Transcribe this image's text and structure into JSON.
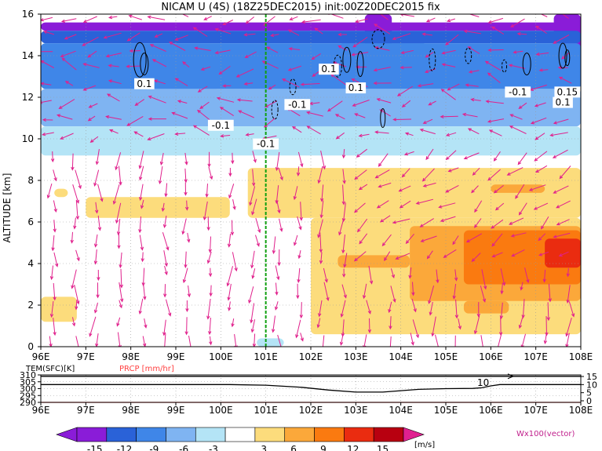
{
  "title": "NICAM U (4S) (18Z25DEC2015) init:00Z20DEC2015 fix",
  "colors": {
    "neg15": "#8a1cd8",
    "neg12": "#2a62d8",
    "neg9": "#3f86e8",
    "neg6": "#7fb4f2",
    "neg3": "#b4e4f6",
    "zero": "#ffffff",
    "pos3": "#fcdc7c",
    "pos6": "#fba83a",
    "pos9": "#fa7a10",
    "pos12": "#ea2c10",
    "pos15": "#b80010",
    "over": "#e02090",
    "vector": "#e0208c",
    "contour": "#000000",
    "marker": "#10a010",
    "prcp": "#ff4040"
  },
  "chart_data": [
    {
      "type": "heatmap",
      "title": "NICAM U (4S) (18Z25DEC2015) init:00Z20DEC2015 fix",
      "ylabel": "ALTITUDE [km]",
      "x_ticks": [
        "96E",
        "97E",
        "98E",
        "99E",
        "100E",
        "101E",
        "102E",
        "103E",
        "104E",
        "105E",
        "106E",
        "107E",
        "108E"
      ],
      "y_ticks": [
        "0",
        "2",
        "4",
        "6",
        "8",
        "10",
        "12",
        "14",
        "16"
      ],
      "xlim": [
        96,
        108
      ],
      "ylim": [
        0,
        16
      ],
      "marker_x": 101,
      "contour_labels": [
        "0.1",
        "-0.1",
        "-0.1",
        "-0.1",
        "0.1",
        "0.1",
        "-0.1",
        "0.15",
        "0.1"
      ],
      "colorbar_levels": [
        "-15",
        "-12",
        "-9",
        "-6",
        "-3",
        "3",
        "6",
        "9",
        "12",
        "15"
      ],
      "colorbar_unit": "[m/s]",
      "vector_label": "Wx100(vector)",
      "u_regions": [
        {
          "level": "neg15",
          "x": [
            96,
            108
          ],
          "y": [
            15.2,
            15.6
          ]
        },
        {
          "level": "neg15",
          "x": [
            103.2,
            103.8
          ],
          "y": [
            13.8,
            16
          ]
        },
        {
          "level": "neg15",
          "x": [
            107.4,
            108
          ],
          "y": [
            13.2,
            16
          ]
        },
        {
          "level": "neg12",
          "x": [
            96,
            108
          ],
          "y": [
            14.6,
            15.2
          ]
        },
        {
          "level": "neg12",
          "x": [
            102.6,
            104.6
          ],
          "y": [
            12.6,
            14.6
          ]
        },
        {
          "level": "neg9",
          "x": [
            96,
            108
          ],
          "y": [
            12.4,
            14.6
          ]
        },
        {
          "level": "neg9",
          "x": [
            96,
            100
          ],
          "y": [
            10.8,
            12.4
          ]
        },
        {
          "level": "neg6",
          "x": [
            96,
            108
          ],
          "y": [
            10.6,
            12.4
          ]
        },
        {
          "level": "neg6",
          "x": [
            101,
            103
          ],
          "y": [
            9.6,
            10.6
          ]
        },
        {
          "level": "neg3",
          "x": [
            96,
            108
          ],
          "y": [
            9.2,
            10.6
          ]
        },
        {
          "level": "neg3",
          "x": [
            100.8,
            101.4
          ],
          "y": [
            0,
            0.4
          ]
        },
        {
          "level": "pos3",
          "x": [
            96.3,
            96.6
          ],
          "y": [
            7.2,
            7.6
          ]
        },
        {
          "level": "pos3",
          "x": [
            97,
            100.2
          ],
          "y": [
            6.2,
            7.2
          ]
        },
        {
          "level": "pos3",
          "x": [
            100.6,
            108
          ],
          "y": [
            6.2,
            8.6
          ]
        },
        {
          "level": "pos3",
          "x": [
            102,
            108
          ],
          "y": [
            0.6,
            6.2
          ]
        },
        {
          "level": "pos3",
          "x": [
            96,
            96.8
          ],
          "y": [
            1.2,
            2.4
          ]
        },
        {
          "level": "pos6",
          "x": [
            104.2,
            108
          ],
          "y": [
            2.2,
            5.8
          ]
        },
        {
          "level": "pos6",
          "x": [
            102.6,
            104.2
          ],
          "y": [
            3.8,
            4.4
          ]
        },
        {
          "level": "pos6",
          "x": [
            105.4,
            106.4
          ],
          "y": [
            1.6,
            2.2
          ]
        },
        {
          "level": "pos6",
          "x": [
            106,
            107.2
          ],
          "y": [
            7.4,
            7.8
          ]
        },
        {
          "level": "pos9",
          "x": [
            105.4,
            108
          ],
          "y": [
            3,
            5.6
          ]
        },
        {
          "level": "pos12",
          "x": [
            107.2,
            108
          ],
          "y": [
            3.8,
            5.2
          ]
        }
      ]
    },
    {
      "type": "line",
      "title": "TEM(SFC)[K]",
      "secondary_title": "PRCP [mm/hr]",
      "x_ticks": [
        "96E",
        "97E",
        "98E",
        "99E",
        "100E",
        "101E",
        "102E",
        "103E",
        "104E",
        "105E",
        "106E",
        "107E",
        "108E"
      ],
      "xlim": [
        96,
        108
      ],
      "ylim_left": [
        290,
        310
      ],
      "ylim_right": [
        0,
        15
      ],
      "y_ticks_left": [
        "310",
        "305",
        "300",
        "295",
        "290"
      ],
      "y_ticks_right": [
        "15",
        "10",
        "5",
        "0"
      ],
      "annotation": "10",
      "series": [
        {
          "x": [
            96,
            100.2,
            101,
            101.8,
            102.4,
            103,
            103.6,
            104,
            104.4,
            105,
            105.6,
            105.8,
            106,
            106.2,
            108
          ],
          "values": [
            303,
            303,
            302.5,
            301,
            299,
            297.5,
            297.5,
            298.5,
            299.5,
            300,
            300.2,
            300.6,
            302,
            303,
            303
          ]
        },
        {
          "x": [
            96,
            108
          ],
          "values": [
            309,
            309
          ]
        },
        {
          "x": [
            96,
            108
          ],
          "values": [
            290,
            290
          ]
        }
      ]
    }
  ]
}
